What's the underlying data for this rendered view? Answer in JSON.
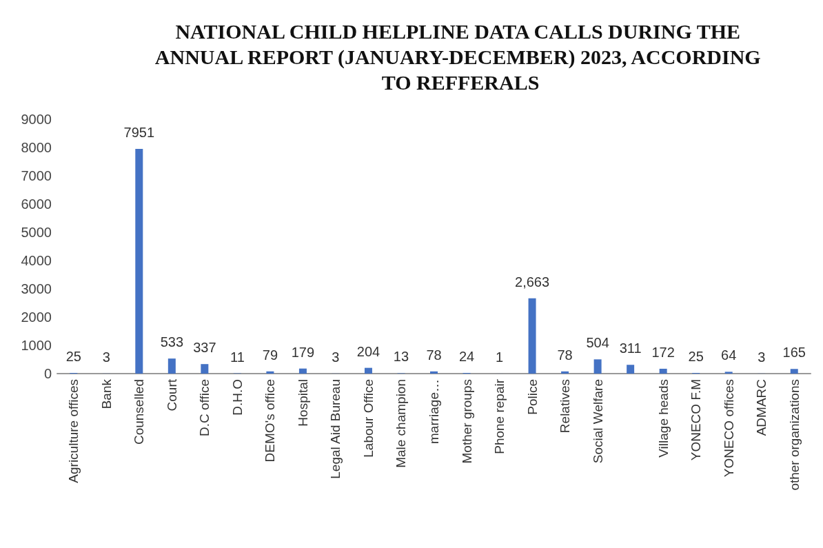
{
  "chart_data": {
    "type": "bar",
    "title": "NATIONAL CHILD HELPLINE DATA CALLS DURING THE ANNUAL REPORT (JANUARY-DECEMBER) 2023, ACCORDING TO REFFERALS",
    "categories": [
      "Agriculture offices",
      "Bank",
      "Counselled",
      "Court",
      "D.C office",
      "D.H.O",
      "DEMO's office",
      "Hospital",
      "Legal Aid Bureau",
      "Labour Office",
      "Male champion",
      "marriage…",
      "Mother groups",
      "Phone repair",
      "Police",
      "Relatives",
      "Social Welfare",
      null,
      "Village heads",
      "YONECO F.M",
      "YONECO offices",
      "ADMARC",
      "other organizations"
    ],
    "values": [
      25,
      3,
      7951,
      533,
      337,
      11,
      79,
      179,
      3,
      204,
      13,
      78,
      24,
      1,
      2663,
      78,
      504,
      311,
      172,
      25,
      64,
      3,
      165
    ],
    "value_labels": [
      "25",
      "3",
      "7951",
      "533",
      "337",
      "11",
      "79",
      "179",
      "3",
      "204",
      "13",
      "78",
      "24",
      "1",
      "2,663",
      "78",
      "504",
      "311",
      "172",
      "25",
      "64",
      "3",
      "165"
    ],
    "color": "#4472c4",
    "ylim": [
      0,
      9000
    ],
    "yticks": [
      0,
      1000,
      2000,
      3000,
      4000,
      5000,
      6000,
      7000,
      8000,
      9000
    ],
    "grid": false
  }
}
